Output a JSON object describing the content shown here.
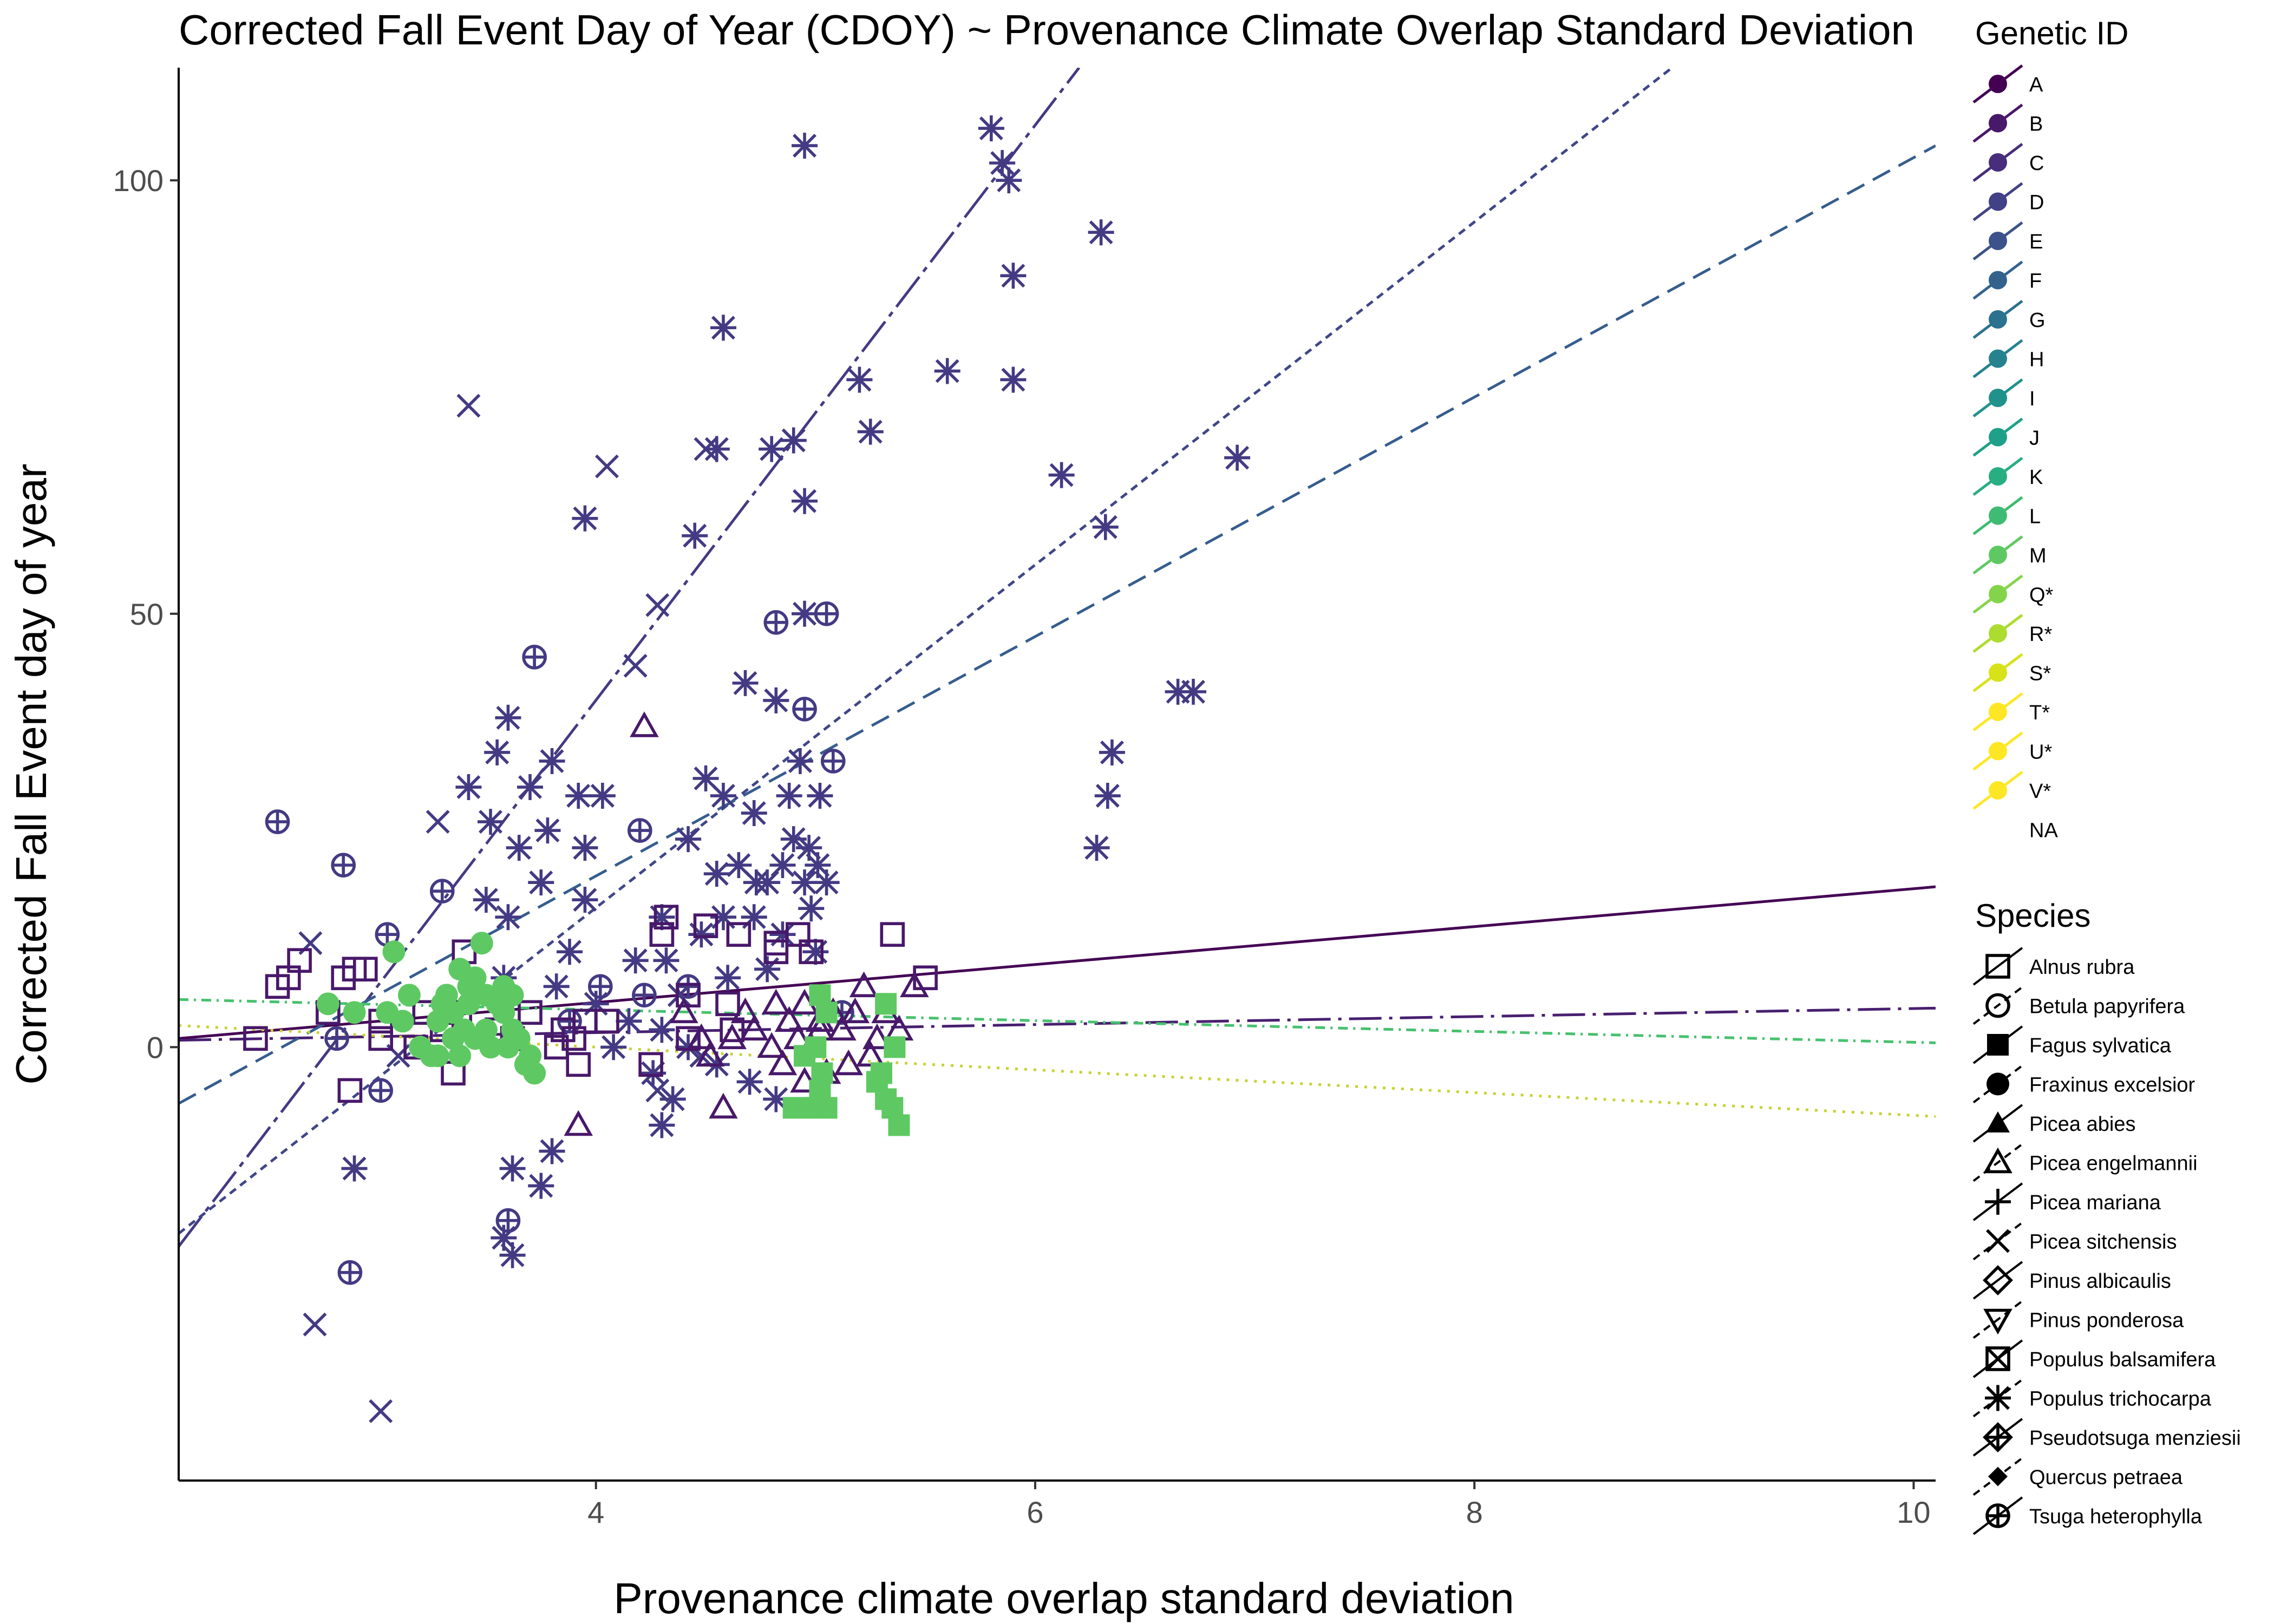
{
  "chart_data": {
    "type": "scatter",
    "title": "Corrected Fall Event Day of Year (CDOY) ~ Provenance Climate Overlap Standard Deviation",
    "xlabel": "Provenance climate overlap standard deviation",
    "ylabel": "Corrected Fall Event day of year",
    "xlim": [
      2.1,
      10.1
    ],
    "ylim": [
      -50,
      113
    ],
    "x_ticks": [
      4,
      6,
      8,
      10
    ],
    "y_ticks": [
      0,
      50,
      100
    ],
    "grid": false,
    "legend_position": "right",
    "colors": {
      "A": "#440154",
      "B": "#471164",
      "C": "#481f70",
      "D": "#472d7b",
      "E": "#443a83",
      "F": "#404688",
      "G": "#3b528b",
      "H": "#365d8d",
      "I": "#31688e",
      "J": "#2c728e",
      "K": "#287c8e",
      "L": "#24868e",
      "M": "#21908c",
      "Q*": "#1f9a8a",
      "R*": "#20a486",
      "S*": "#27ad81",
      "T*": "#35b779",
      "U*": "#47c16e",
      "V*": "#5dc863"
    },
    "gen_legend": {
      "title": "Genetic ID",
      "items": [
        "A",
        "B",
        "C",
        "D",
        "E",
        "F",
        "G",
        "H",
        "I",
        "J",
        "K",
        "L",
        "M",
        "Q*",
        "R*",
        "S*",
        "T*",
        "U*",
        "V*",
        "NA"
      ],
      "colors": [
        "#440154",
        "#48186a",
        "#472d7b",
        "#424086",
        "#3b528b",
        "#33638d",
        "#2c728e",
        "#26828e",
        "#21918c",
        "#1fa088",
        "#28ae80",
        "#3fbc73",
        "#5ec962",
        "#84d44b",
        "#addc30",
        "#d8e219",
        "#fde725",
        "#fde725",
        "#fde725",
        ""
      ]
    },
    "species_legend": {
      "title": "Species",
      "items": [
        {
          "name": "Alnus rubra",
          "shape": "square-open"
        },
        {
          "name": "Betula papyrifera",
          "shape": "circle-open"
        },
        {
          "name": "Fagus sylvatica",
          "shape": "square-filled"
        },
        {
          "name": "Fraxinus excelsior",
          "shape": "circle-filled"
        },
        {
          "name": "Picea abies",
          "shape": "triangle-filled"
        },
        {
          "name": "Picea engelmannii",
          "shape": "triangle-open"
        },
        {
          "name": "Picea mariana",
          "shape": "plus"
        },
        {
          "name": "Picea sitchensis",
          "shape": "cross"
        },
        {
          "name": "Pinus albicaulis",
          "shape": "diamond-open"
        },
        {
          "name": "Pinus ponderosa",
          "shape": "triangle-down-open"
        },
        {
          "name": "Populus balsamifera",
          "shape": "square-cross"
        },
        {
          "name": "Populus trichocarpa",
          "shape": "asterisk"
        },
        {
          "name": "Pseudotsuga menziesii",
          "shape": "diamond-plus"
        },
        {
          "name": "Quercus petraea",
          "shape": "diamond-filled"
        },
        {
          "name": "Tsuga heterophylla",
          "shape": "circle-plus"
        }
      ]
    },
    "fit_lines": [
      {
        "group": "A",
        "color": "#440154",
        "dash": "solid",
        "x": [
          2.1,
          10.1
        ],
        "y": [
          1.0,
          18.5
        ]
      },
      {
        "group": "C",
        "color": "#481f70",
        "dash": "long-dash-dot",
        "x": [
          2.1,
          10.1
        ],
        "y": [
          0.8,
          4.5
        ]
      },
      {
        "group": "E",
        "color": "#443a83",
        "dash": "long-dash",
        "x": [
          2.1,
          6.2
        ],
        "y": [
          -23.0,
          113.0
        ]
      },
      {
        "group": "F",
        "color": "#404688",
        "dash": "short-dash",
        "x": [
          2.1,
          8.9
        ],
        "y": [
          -21.5,
          113.0
        ]
      },
      {
        "group": "H",
        "color": "#365d8d",
        "dash": "dash",
        "x": [
          2.1,
          10.1
        ],
        "y": [
          -6.5,
          104.0
        ]
      },
      {
        "group": "U*",
        "color": "#47c16e",
        "dash": "dot-dash",
        "x": [
          2.1,
          10.1
        ],
        "y": [
          5.5,
          0.5
        ]
      },
      {
        "group": "V*",
        "color": "#c9d233",
        "dash": "dotted",
        "x": [
          2.1,
          10.1
        ],
        "y": [
          2.5,
          -8.0
        ]
      }
    ],
    "series": [
      {
        "name": "Populus trichocarpa",
        "color": "#443a83",
        "shape": "asterisk",
        "points": [
          [
            5.8,
            106
          ],
          [
            5.85,
            102
          ],
          [
            5.88,
            100
          ],
          [
            4.95,
            104
          ],
          [
            5.9,
            89
          ],
          [
            6.3,
            94
          ],
          [
            4.58,
            83
          ],
          [
            5.2,
            77
          ],
          [
            5.6,
            78
          ],
          [
            5.9,
            77
          ],
          [
            4.8,
            69
          ],
          [
            4.55,
            69
          ],
          [
            4.9,
            70
          ],
          [
            5.25,
            71
          ],
          [
            6.12,
            66
          ],
          [
            6.32,
            60
          ],
          [
            6.92,
            68
          ],
          [
            3.95,
            61
          ],
          [
            4.95,
            63
          ],
          [
            4.45,
            59
          ],
          [
            6.65,
            41
          ],
          [
            6.72,
            41
          ],
          [
            4.68,
            42
          ],
          [
            4.82,
            40
          ],
          [
            6.35,
            34
          ],
          [
            6.33,
            29
          ],
          [
            6.28,
            23
          ],
          [
            3.6,
            38
          ],
          [
            3.55,
            34
          ],
          [
            3.8,
            33
          ],
          [
            4.95,
            50
          ],
          [
            3.42,
            30
          ],
          [
            3.7,
            30
          ],
          [
            3.92,
            29
          ],
          [
            4.03,
            29
          ],
          [
            4.5,
            31
          ],
          [
            4.58,
            29
          ],
          [
            4.72,
            27
          ],
          [
            4.88,
            29
          ],
          [
            5.02,
            29
          ],
          [
            4.93,
            33
          ],
          [
            4.97,
            23
          ],
          [
            3.52,
            26
          ],
          [
            3.65,
            23
          ],
          [
            3.78,
            25
          ],
          [
            3.95,
            23
          ],
          [
            4.42,
            24
          ],
          [
            4.55,
            20
          ],
          [
            4.65,
            21
          ],
          [
            4.78,
            19
          ],
          [
            4.85,
            21
          ],
          [
            4.95,
            19
          ],
          [
            5.05,
            19
          ],
          [
            3.5,
            17
          ],
          [
            3.6,
            15
          ],
          [
            3.75,
            19
          ],
          [
            3.95,
            17
          ],
          [
            4.3,
            15
          ],
          [
            4.48,
            13
          ],
          [
            4.58,
            15
          ],
          [
            4.72,
            15
          ],
          [
            4.85,
            13
          ],
          [
            4.98,
            16
          ],
          [
            3.88,
            11
          ],
          [
            4.18,
            10
          ],
          [
            4.32,
            10
          ],
          [
            4.6,
            8
          ],
          [
            4.78,
            9
          ],
          [
            5.0,
            11
          ],
          [
            3.58,
            8
          ],
          [
            3.82,
            7
          ],
          [
            4.0,
            5
          ],
          [
            4.15,
            3
          ],
          [
            4.3,
            2
          ],
          [
            4.42,
            0
          ],
          [
            4.55,
            -2
          ],
          [
            4.7,
            -4
          ],
          [
            4.82,
            -6
          ],
          [
            3.62,
            -14
          ],
          [
            3.8,
            -12
          ],
          [
            3.75,
            -16
          ],
          [
            3.58,
            -22
          ],
          [
            3.62,
            -24
          ],
          [
            2.9,
            -14
          ],
          [
            4.08,
            0
          ],
          [
            4.26,
            -3
          ],
          [
            4.35,
            -6
          ],
          [
            4.3,
            -9
          ],
          [
            5.01,
            21
          ],
          [
            4.9,
            24
          ],
          [
            4.73,
            19
          ]
        ]
      },
      {
        "name": "Picea sitchensis",
        "color": "#443a83",
        "shape": "cross",
        "points": [
          [
            3.42,
            74
          ],
          [
            4.05,
            67
          ],
          [
            4.5,
            69
          ],
          [
            4.9,
            70
          ],
          [
            4.28,
            51
          ],
          [
            4.18,
            44
          ],
          [
            3.28,
            26
          ],
          [
            2.7,
            12
          ],
          [
            2.72,
            -32
          ],
          [
            3.02,
            -42
          ],
          [
            3.1,
            -1
          ],
          [
            4.28,
            -5
          ],
          [
            4.48,
            -1
          ],
          [
            4.38,
            6
          ]
        ]
      },
      {
        "name": "Tsuga heterophylla",
        "color": "#443a83",
        "shape": "circle-plus",
        "points": [
          [
            2.55,
            26
          ],
          [
            2.85,
            21
          ],
          [
            3.3,
            18
          ],
          [
            3.05,
            13
          ],
          [
            3.72,
            45
          ],
          [
            4.82,
            49
          ],
          [
            5.05,
            50
          ],
          [
            4.95,
            39
          ],
          [
            5.08,
            33
          ],
          [
            4.2,
            25
          ],
          [
            4.02,
            7
          ],
          [
            4.42,
            7
          ],
          [
            2.82,
            1
          ],
          [
            3.02,
            -5
          ],
          [
            3.6,
            -20
          ],
          [
            2.88,
            -26
          ],
          [
            4.22,
            6
          ],
          [
            3.88,
            3
          ],
          [
            5.12,
            4
          ]
        ]
      },
      {
        "name": "Alnus rubra",
        "color": "#48186a",
        "shape": "square-open",
        "points": [
          [
            2.45,
            1
          ],
          [
            2.55,
            7
          ],
          [
            2.6,
            8
          ],
          [
            2.65,
            10
          ],
          [
            2.78,
            4
          ],
          [
            2.85,
            8
          ],
          [
            2.9,
            9
          ],
          [
            2.95,
            9
          ],
          [
            3.02,
            1
          ],
          [
            3.18,
            0
          ],
          [
            3.3,
            2
          ],
          [
            3.38,
            4
          ],
          [
            3.55,
            2
          ],
          [
            3.7,
            4
          ],
          [
            3.85,
            2
          ],
          [
            3.9,
            1
          ],
          [
            3.95,
            3
          ],
          [
            4.05,
            3
          ],
          [
            4.3,
            13
          ],
          [
            4.32,
            15
          ],
          [
            4.42,
            6
          ],
          [
            4.5,
            14
          ],
          [
            4.65,
            13
          ],
          [
            4.82,
            12
          ],
          [
            4.82,
            11
          ],
          [
            4.92,
            13
          ],
          [
            4.98,
            11
          ],
          [
            5.5,
            8
          ],
          [
            5.35,
            13
          ],
          [
            4.42,
            1
          ],
          [
            4.62,
            2
          ],
          [
            3.35,
            -3
          ],
          [
            2.88,
            -5
          ],
          [
            3.02,
            3
          ],
          [
            3.22,
            4
          ],
          [
            3.62,
            1
          ],
          [
            3.92,
            -2
          ],
          [
            4.25,
            -2
          ],
          [
            4.6,
            5
          ],
          [
            3.4,
            11
          ],
          [
            3.82,
            0
          ]
        ]
      },
      {
        "name": "Picea engelmannii",
        "color": "#48186a",
        "shape": "triangle-open",
        "points": [
          [
            4.22,
            37
          ],
          [
            5.45,
            7
          ],
          [
            5.22,
            7
          ],
          [
            5.02,
            2
          ],
          [
            5.08,
            4
          ],
          [
            4.92,
            1
          ],
          [
            4.88,
            3
          ],
          [
            4.95,
            5
          ],
          [
            5.02,
            3
          ],
          [
            5.12,
            2
          ],
          [
            5.18,
            4
          ],
          [
            5.28,
            1
          ],
          [
            5.32,
            4
          ],
          [
            4.8,
            0
          ],
          [
            4.85,
            -2
          ],
          [
            4.95,
            -4
          ],
          [
            5.05,
            -3
          ],
          [
            5.15,
            -2
          ],
          [
            5.25,
            -1
          ],
          [
            4.72,
            2
          ],
          [
            4.62,
            1
          ],
          [
            4.52,
            -1
          ],
          [
            4.58,
            -7
          ],
          [
            3.92,
            -9
          ],
          [
            4.4,
            4
          ],
          [
            4.48,
            1
          ],
          [
            4.68,
            4
          ],
          [
            4.82,
            5
          ],
          [
            5.38,
            2
          ],
          [
            4.98,
            0
          ]
        ]
      },
      {
        "name": "Fraxinus excelsior",
        "color": "#5ec962",
        "shape": "circle-filled",
        "points": [
          [
            3.08,
            11
          ],
          [
            3.38,
            9
          ],
          [
            3.48,
            12
          ],
          [
            3.45,
            8
          ],
          [
            3.32,
            6
          ],
          [
            3.3,
            5
          ],
          [
            3.28,
            3
          ],
          [
            3.35,
            4
          ],
          [
            3.42,
            5
          ],
          [
            3.5,
            6
          ],
          [
            3.55,
            5
          ],
          [
            3.58,
            4
          ],
          [
            3.62,
            2
          ],
          [
            3.65,
            1
          ],
          [
            3.7,
            -1
          ],
          [
            3.72,
            -3
          ],
          [
            3.68,
            -2
          ],
          [
            3.6,
            0
          ],
          [
            3.52,
            0
          ],
          [
            3.45,
            1
          ],
          [
            3.4,
            2
          ],
          [
            3.35,
            1
          ],
          [
            3.28,
            -1
          ],
          [
            3.25,
            -1
          ],
          [
            3.2,
            0
          ],
          [
            3.15,
            6
          ],
          [
            3.05,
            4
          ],
          [
            2.9,
            4
          ],
          [
            2.78,
            5
          ],
          [
            3.12,
            3
          ],
          [
            3.42,
            7
          ],
          [
            3.58,
            7
          ],
          [
            3.62,
            6
          ],
          [
            3.38,
            -1
          ],
          [
            3.5,
            2
          ]
        ]
      },
      {
        "name": "Fagus sylvatica",
        "color": "#5ec962",
        "shape": "square-filled",
        "points": [
          [
            5.02,
            6
          ],
          [
            5.05,
            4
          ],
          [
            5.0,
            0
          ],
          [
            4.95,
            -1
          ],
          [
            5.03,
            -3
          ],
          [
            5.02,
            -5
          ],
          [
            4.98,
            -7
          ],
          [
            4.9,
            -7
          ],
          [
            5.05,
            -7
          ],
          [
            5.32,
            5
          ],
          [
            5.36,
            0
          ],
          [
            5.3,
            -3
          ],
          [
            5.28,
            -4
          ],
          [
            5.32,
            -6
          ],
          [
            5.35,
            -7
          ],
          [
            5.38,
            -9
          ],
          [
            5.02,
            -6
          ]
        ]
      }
    ]
  }
}
